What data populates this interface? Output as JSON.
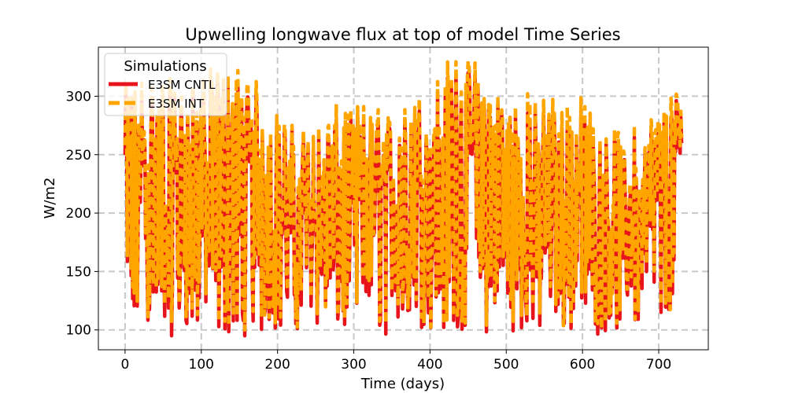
{
  "chart_data": {
    "type": "line",
    "title": "Upwelling longwave flux at top of model Time Series",
    "xlabel": "Time (days)",
    "ylabel": "W/m2",
    "xlim": [
      -35,
      765
    ],
    "ylim": [
      83,
      342
    ],
    "xticks": [
      0,
      100,
      200,
      300,
      400,
      500,
      600,
      700
    ],
    "yticks": [
      100,
      150,
      200,
      250,
      300
    ],
    "grid": true,
    "legend": {
      "title": "Simulations",
      "location": "top-left"
    },
    "series": [
      {
        "name": "E3SM CNTL",
        "color": "#e8141b",
        "style": "solid",
        "x_range": [
          0,
          730
        ],
        "value_range": [
          95,
          320
        ]
      },
      {
        "name": "E3SM INT",
        "color": "#ffa500",
        "style": "dashed",
        "x_range": [
          0,
          730
        ],
        "value_range": [
          100,
          330
        ]
      }
    ]
  }
}
